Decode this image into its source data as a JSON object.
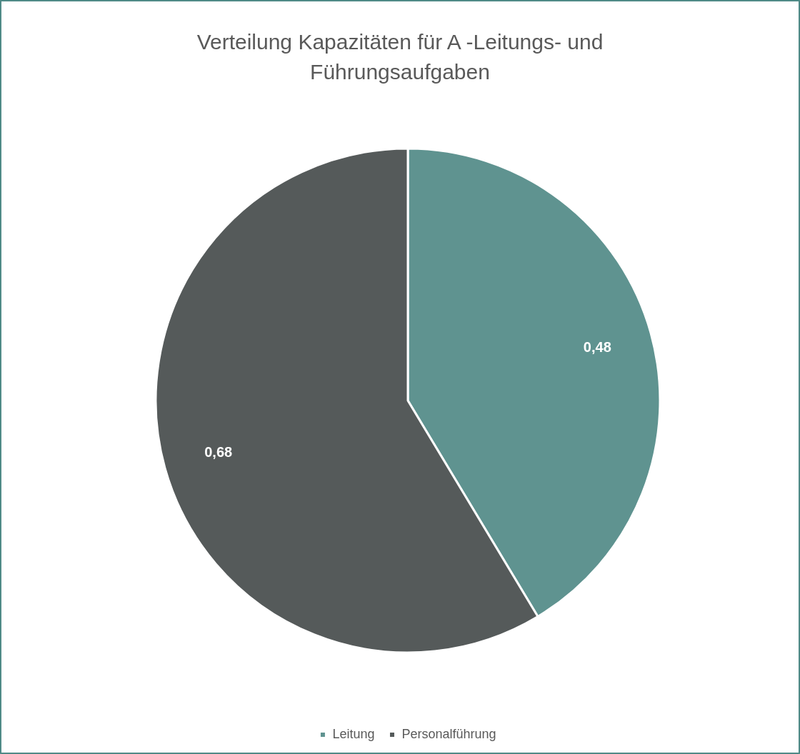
{
  "chart_data": {
    "type": "pie",
    "title": "Verteilung Kapazitäten für A -Leitungs- und Führungsaufgaben",
    "categories": [
      "Leitung",
      "Personalführung"
    ],
    "values": [
      0.48,
      0.68
    ],
    "colors": [
      "#5f9390",
      "#555a5a"
    ],
    "value_labels": [
      "0,48",
      "0,68"
    ],
    "legend": "bottom"
  }
}
